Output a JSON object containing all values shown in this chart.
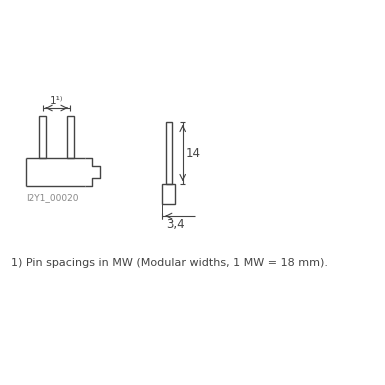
{
  "bg_color": "#ffffff",
  "line_color": "#444444",
  "text_color": "#444444",
  "fig_width": 3.85,
  "fig_height": 3.85,
  "image_label": "I2Y1_00020",
  "dim_14": "14",
  "dim_34": "3,4",
  "footnote": "1) Pin spacings in MW (Modular widths, 1 MW = 18 mm)."
}
